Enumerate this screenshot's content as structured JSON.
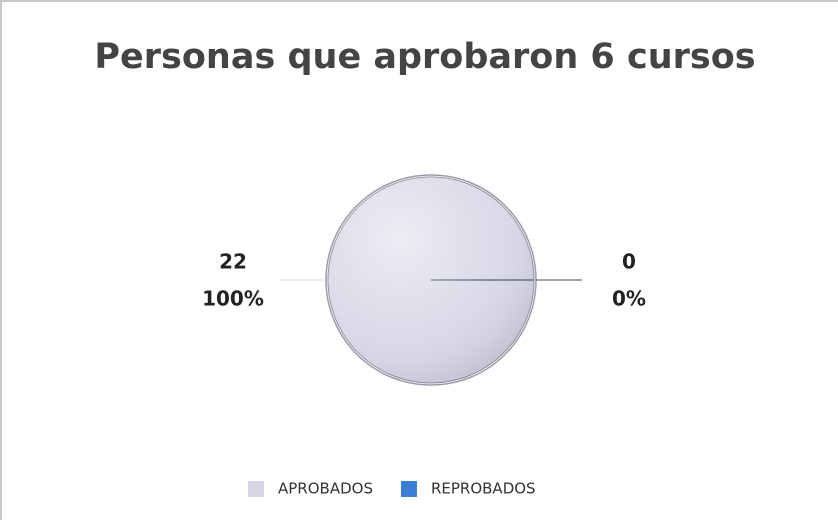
{
  "chart_data": {
    "type": "pie",
    "title": "Personas que aprobaron 6 cursos",
    "categories": [
      "APROBADOS",
      "REPROBADOS"
    ],
    "values": [
      22,
      0
    ],
    "percent_values": [
      100,
      0
    ],
    "percent_labels": [
      "100%",
      "0%"
    ],
    "colors": [
      "#d6d6e6",
      "#3a7fd5"
    ],
    "legend": "bottom"
  }
}
